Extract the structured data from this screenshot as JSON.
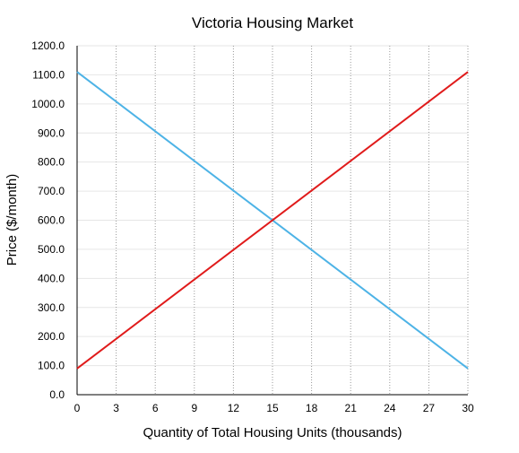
{
  "chart_data": {
    "type": "line",
    "title": "Victoria Housing Market",
    "xlabel": "Quantity of Total Housing Units (thousands)",
    "ylabel": "Price ($/month)",
    "xlim": [
      0,
      30
    ],
    "ylim": [
      0,
      1200
    ],
    "x_ticks": [
      "0",
      "3",
      "6",
      "9",
      "12",
      "15",
      "18",
      "21",
      "24",
      "27",
      "30"
    ],
    "y_ticks": [
      "0.0",
      "100.0",
      "200.0",
      "300.0",
      "400.0",
      "500.0",
      "600.0",
      "700.0",
      "800.0",
      "900.0",
      "1000.0",
      "1100.0",
      "1200.0"
    ],
    "grid": true,
    "series": [
      {
        "color": "#4db3e6",
        "x": [
          0,
          30
        ],
        "y": [
          1110,
          90
        ]
      },
      {
        "color": "#e01b1b",
        "x": [
          0,
          30
        ],
        "y": [
          90,
          1110
        ]
      }
    ]
  }
}
